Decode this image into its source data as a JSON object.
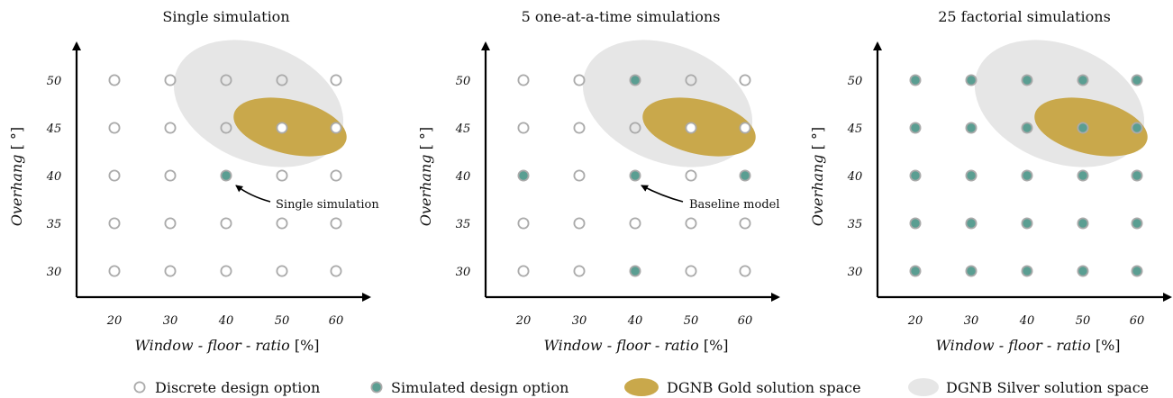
{
  "colors": {
    "gold": "#c9a84b",
    "silver": "#e6e6e6",
    "simulated": "#5a9e92",
    "option_stroke": "#aaaaaa",
    "axis": "#000000"
  },
  "x_ticks": [
    "20",
    "30",
    "40",
    "50",
    "60"
  ],
  "y_ticks": [
    "50",
    "45",
    "40",
    "35",
    "30"
  ],
  "xlabel_italic": "Window - floor - ratio",
  "xlabel_unit": "[%]",
  "ylabel_italic": "Overhang",
  "ylabel_unit": "[ °]",
  "panels": [
    {
      "title": "Single simulation",
      "annotation": "Single simulation",
      "simulated": [
        [
          40,
          40
        ]
      ]
    },
    {
      "title": "5 one-at-a-time simulations",
      "annotation": "Baseline model",
      "simulated": [
        [
          40,
          50
        ],
        [
          20,
          40
        ],
        [
          40,
          40
        ],
        [
          60,
          40
        ],
        [
          40,
          30
        ]
      ]
    },
    {
      "title": "25 factorial simulations",
      "annotation": "",
      "simulated": "all"
    }
  ],
  "legend": [
    {
      "icon": "open-circle-icon",
      "label": "Discrete design option"
    },
    {
      "icon": "filled-circle-icon",
      "label": "Simulated design option"
    },
    {
      "icon": "gold-ellipse-icon",
      "label": "DGNB Gold solution space"
    },
    {
      "icon": "silver-ellipse-icon",
      "label": "DGNB Silver solution space"
    }
  ]
}
